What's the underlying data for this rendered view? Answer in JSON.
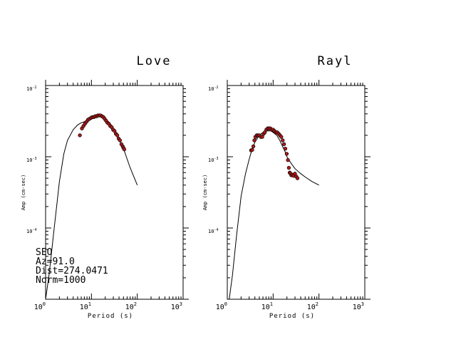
{
  "chart_data": [
    {
      "type": "scatter",
      "title": "Love",
      "xlabel": "Period (s)",
      "ylabel": "Amp (cm-sec)",
      "x_scale": "log",
      "y_scale": "log",
      "xlim": [
        1,
        1000
      ],
      "ylim": [
        1e-05,
        0.01
      ],
      "x_ticks": [
        {
          "base": "10",
          "exp": "0"
        },
        {
          "base": "10",
          "exp": "1"
        },
        {
          "base": "10",
          "exp": "2"
        },
        {
          "base": "10",
          "exp": "3"
        }
      ],
      "y_ticks": [
        {
          "base": "10",
          "exp": "-2",
          "value": 0.01
        },
        {
          "base": "10",
          "exp": "-3",
          "value": 0.001
        },
        {
          "base": "10",
          "exp": "-4",
          "value": 0.0001
        }
      ],
      "annotation_lines": [
        "SEO",
        "Az=91.0",
        "Dist=274.0471",
        "Norm=1000"
      ],
      "series": [
        {
          "style": "line",
          "x": [
            1.0,
            1.2,
            1.5,
            2.0,
            2.5,
            3.0,
            4.0,
            5.0,
            6.0,
            7.0,
            8.0,
            10.0,
            12.0,
            15.0,
            18.0,
            20.0,
            25.0,
            30.0,
            40.0,
            50.0,
            70.0,
            100.0
          ],
          "y": [
            1e-05,
            2.3e-05,
            8.5e-05,
            0.00045,
            0.0011,
            0.0017,
            0.0024,
            0.0028,
            0.003,
            0.0031,
            0.0032,
            0.0034,
            0.0036,
            0.0037,
            0.0036,
            0.0034,
            0.003,
            0.0025,
            0.0018,
            0.0013,
            0.0007,
            0.0004
          ]
        },
        {
          "style": "points",
          "color": "#b01818",
          "x": [
            5.6,
            6.2,
            6.7,
            7.2,
            7.8,
            8.4,
            9.0,
            9.7,
            10.4,
            11.2,
            12.0,
            12.9,
            13.8,
            14.8,
            15.8,
            17.0,
            18.2,
            19.5,
            20.9,
            22.4,
            24.0,
            25.8,
            27.7,
            29.7,
            31.8,
            34.1,
            36.6,
            39.2,
            42.0,
            45.0,
            48.0,
            50.0,
            52.0
          ],
          "y": [
            0.002,
            0.0025,
            0.0027,
            0.0029,
            0.0031,
            0.0033,
            0.0034,
            0.0035,
            0.0036,
            0.0036,
            0.0037,
            0.0037,
            0.0038,
            0.0038,
            0.0038,
            0.0037,
            0.0036,
            0.0034,
            0.0032,
            0.003,
            0.0029,
            0.0027,
            0.0026,
            0.0024,
            0.0023,
            0.0021,
            0.002,
            0.0018,
            0.0017,
            0.0015,
            0.0014,
            0.00133,
            0.00127
          ]
        }
      ]
    },
    {
      "type": "scatter",
      "title": "Rayl",
      "xlabel": "Period (s)",
      "ylabel": "Amp (cm-sec)",
      "x_scale": "log",
      "y_scale": "log",
      "xlim": [
        1,
        1000
      ],
      "ylim": [
        1e-05,
        0.01
      ],
      "x_ticks": [
        {
          "base": "10",
          "exp": "0"
        },
        {
          "base": "10",
          "exp": "1"
        },
        {
          "base": "10",
          "exp": "2"
        },
        {
          "base": "10",
          "exp": "3"
        }
      ],
      "y_ticks": [
        {
          "base": "10",
          "exp": "-2",
          "value": 0.01
        },
        {
          "base": "10",
          "exp": "-3",
          "value": 0.001
        },
        {
          "base": "10",
          "exp": "-4",
          "value": 0.0001
        }
      ],
      "series": [
        {
          "style": "line",
          "x": [
            1.1,
            1.3,
            1.6,
            2.0,
            2.5,
            3.0,
            3.5,
            4.0,
            5.0,
            6.0,
            7.0,
            8.0,
            9.0,
            10.0,
            12.0,
            14.0,
            16.0,
            18.0,
            20.0,
            25.0,
            30.0,
            40.0,
            50.0,
            70.0,
            100.0
          ],
          "y": [
            1e-05,
            2.2e-05,
            8e-05,
            0.00028,
            0.00058,
            0.00092,
            0.0013,
            0.0016,
            0.002,
            0.0022,
            0.0023,
            0.0023,
            0.0023,
            0.0022,
            0.002,
            0.0017,
            0.0014,
            0.0012,
            0.001,
            0.0008,
            0.00068,
            0.00058,
            0.00052,
            0.00045,
            0.0004
          ]
        },
        {
          "style": "points",
          "color": "#b01818",
          "x": [
            3.3,
            3.5,
            3.7,
            3.9,
            4.1,
            4.4,
            4.7,
            5.0,
            5.4,
            5.8,
            6.2,
            6.6,
            7.1,
            7.6,
            8.1,
            8.7,
            9.3,
            10.0,
            10.7,
            11.5,
            12.3,
            13.2,
            14.1,
            15.1,
            16.2,
            17.3,
            18.5,
            19.8,
            21.0,
            22.0,
            23.0,
            24.0,
            25.0,
            26.5,
            28.0,
            30.0,
            32.0,
            34.0
          ],
          "y": [
            0.00123,
            0.00125,
            0.0014,
            0.0017,
            0.0019,
            0.002,
            0.002,
            0.002,
            0.0019,
            0.0019,
            0.0021,
            0.0022,
            0.0024,
            0.0025,
            0.0025,
            0.0025,
            0.0024,
            0.0024,
            0.0023,
            0.0022,
            0.0022,
            0.0021,
            0.002,
            0.0019,
            0.0017,
            0.0015,
            0.0013,
            0.0011,
            0.0009,
            0.0007,
            0.0006,
            0.00058,
            0.00055,
            0.00056,
            0.00054,
            0.00058,
            0.00053,
            0.0005
          ]
        }
      ]
    }
  ]
}
